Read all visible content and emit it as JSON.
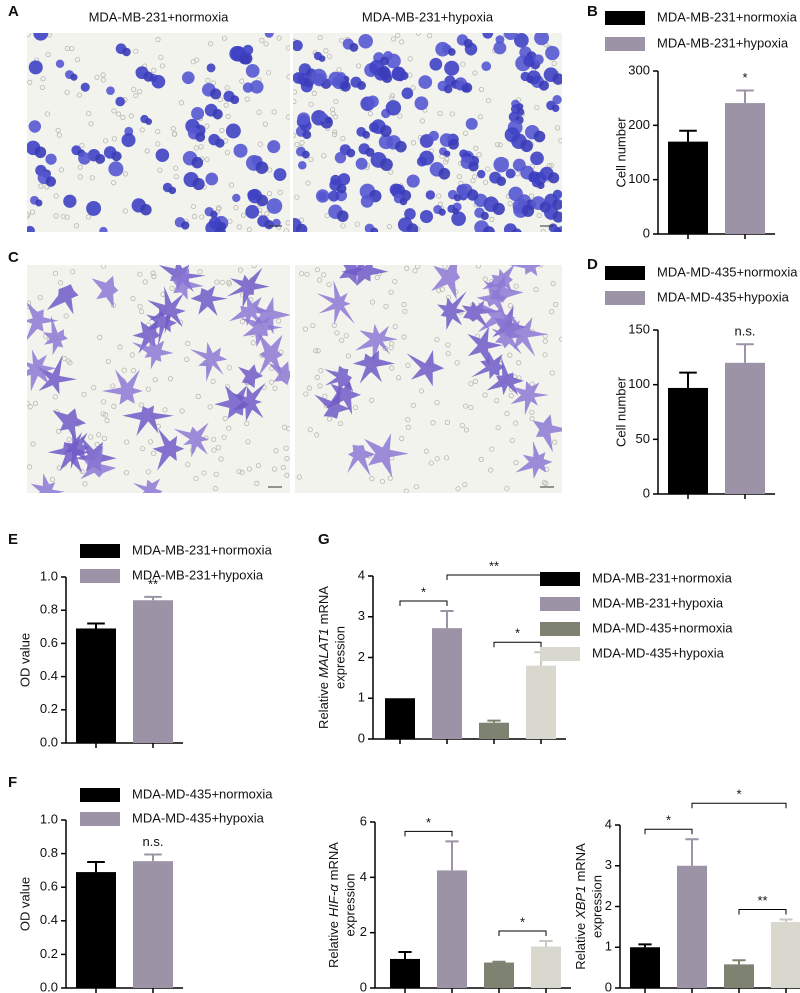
{
  "images": [
    {
      "panel": "A",
      "titles": [
        "MDA-MB-231+normoxia",
        "MDA-MB-231+hypoxia"
      ]
    },
    {
      "panel": "C",
      "titles": [
        "MDA-MD-435+normoxia",
        "MDA-MD-435+hypoxia"
      ]
    }
  ],
  "chart_data": [
    {
      "type": "bar",
      "panel": "B",
      "y_label": "Cell number",
      "series": [
        {
          "name": "MDA-MB-231+normoxia",
          "color": "#000000",
          "values": [
            170
          ],
          "errors": [
            20
          ]
        },
        {
          "name": "MDA-MB-231+hypoxia",
          "color": "#9c94a6",
          "values": [
            241
          ],
          "errors": [
            23
          ]
        }
      ],
      "ylim": [
        0,
        300
      ],
      "yticks": [
        0,
        100,
        200,
        300
      ],
      "annotations": [
        {
          "text": "*",
          "bars": [
            1
          ]
        }
      ]
    },
    {
      "type": "bar",
      "panel": "D",
      "y_label": "Cell number",
      "series": [
        {
          "name": "MDA-MD-435+normoxia",
          "color": "#000000",
          "values": [
            97
          ],
          "errors": [
            14
          ]
        },
        {
          "name": "MDA-MD-435+hypoxia",
          "color": "#9c94a6",
          "values": [
            120
          ],
          "errors": [
            17
          ]
        }
      ],
      "ylim": [
        0,
        150
      ],
      "yticks": [
        0,
        50,
        100,
        150
      ],
      "annotations": [
        {
          "text": "n.s.",
          "bars": [
            1
          ]
        }
      ]
    },
    {
      "type": "bar",
      "panel": "E",
      "y_label": "OD value",
      "series": [
        {
          "name": "MDA-MB-231+normoxia",
          "color": "#000000",
          "values": [
            0.69
          ],
          "errors": [
            0.03
          ]
        },
        {
          "name": "MDA-MB-231+hypoxia",
          "color": "#9c94a6",
          "values": [
            0.86
          ],
          "errors": [
            0.02
          ]
        }
      ],
      "ylim": [
        0,
        1
      ],
      "yticks": [
        {
          "value": 0,
          "label": "0.0"
        },
        0.2,
        0.4,
        0.6,
        0.8,
        {
          "value": 1,
          "label": "1.0"
        }
      ],
      "annotations": [
        {
          "text": "**",
          "bars": [
            1
          ]
        }
      ]
    },
    {
      "type": "bar",
      "panel": "F",
      "y_label": "OD value",
      "series": [
        {
          "name": "MDA-MD-435+normoxia",
          "color": "#000000",
          "values": [
            0.69
          ],
          "errors": [
            0.06
          ]
        },
        {
          "name": "MDA-MD-435+hypoxia",
          "color": "#9c94a6",
          "values": [
            0.755
          ],
          "errors": [
            0.04
          ]
        }
      ],
      "ylim": [
        0,
        1
      ],
      "yticks": [
        {
          "value": 0,
          "label": "0.0"
        },
        0.2,
        0.4,
        0.6,
        0.8,
        {
          "value": 1,
          "label": "1.0"
        }
      ],
      "annotations": [
        {
          "text": "n.s.",
          "bars": [
            1
          ]
        }
      ]
    },
    {
      "type": "bar",
      "panel": "G",
      "y_label": {
        "prefix": "Relative",
        "gene": "MALAT1",
        "suffix": "mRNA",
        "line2": "expression"
      },
      "series": [
        {
          "name": "MDA-MB-231+normoxia",
          "color": "#000000",
          "values": [
            1.0
          ],
          "errors": [
            0
          ]
        },
        {
          "name": "MDA-MB-231+hypoxia",
          "color": "#9c94a6",
          "values": [
            2.72
          ],
          "errors": [
            0.42
          ]
        },
        {
          "name": "MDA-MD-435+normoxia",
          "color": "#7e8371",
          "values": [
            0.4
          ],
          "errors": [
            0.05
          ]
        },
        {
          "name": "MDA-MD-435+hypoxia",
          "color": "#d8d8cf",
          "values": [
            1.8
          ],
          "errors": [
            0.33
          ]
        }
      ],
      "ylim": [
        0,
        4
      ],
      "yticks": [
        0,
        1,
        2,
        3,
        4
      ],
      "annotations": [
        {
          "text": "*",
          "bars": [
            0,
            1
          ]
        },
        {
          "text": "*",
          "bars": [
            2,
            3
          ]
        },
        {
          "text": "**",
          "bars": [
            1,
            3
          ]
        }
      ]
    },
    {
      "type": "bar",
      "y_label": {
        "prefix": "Relative",
        "gene": "HIF-α",
        "suffix": "mRNA",
        "line2": "expression"
      },
      "values": [
        1.05,
        4.25,
        0.92,
        1.5
      ],
      "errors": [
        0.25,
        1.05,
        0.03,
        0.2
      ],
      "colors": [
        "#000000",
        "#9c94a6",
        "#7e8371",
        "#d8d8cf"
      ],
      "ylim": [
        0,
        6
      ],
      "yticks": [
        0,
        2,
        4,
        6
      ],
      "annotations": [
        {
          "text": "*",
          "bars": [
            0,
            1
          ]
        },
        {
          "text": "*",
          "bars": [
            2,
            3
          ]
        }
      ]
    },
    {
      "type": "bar",
      "y_label": {
        "prefix": "Relative",
        "gene": "XBP1",
        "suffix": "mRNA",
        "line2": "expression"
      },
      "values": [
        1.0,
        3.0,
        0.58,
        1.62
      ],
      "errors": [
        0.07,
        0.65,
        0.1,
        0.06
      ],
      "colors": [
        "#000000",
        "#9c94a6",
        "#7e8371",
        "#d8d8cf"
      ],
      "ylim": [
        0,
        4
      ],
      "yticks": [
        0,
        1,
        2,
        3,
        4
      ],
      "annotations": [
        {
          "text": "*",
          "bars": [
            0,
            1
          ]
        },
        {
          "text": "**",
          "bars": [
            2,
            3
          ]
        },
        {
          "text": "*",
          "bars": [
            1,
            3
          ]
        }
      ]
    }
  ]
}
